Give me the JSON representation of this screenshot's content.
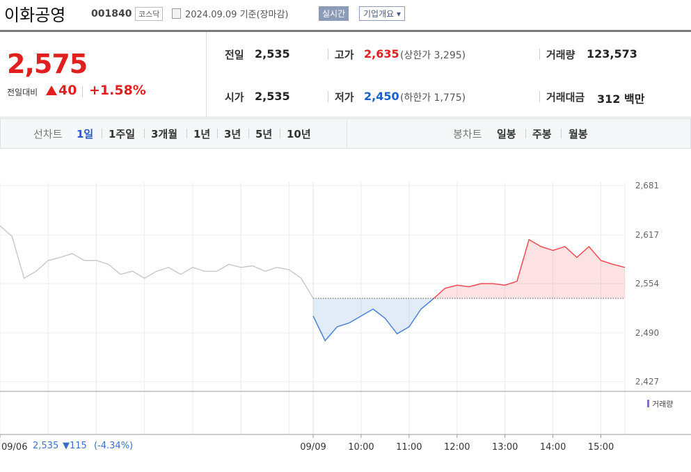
{
  "header": {
    "name": "이화공영",
    "code": "001840",
    "market": "코스닥",
    "date": "2024.09.09 기준(장마감)",
    "realtime": "실시간",
    "company": "기업개요"
  },
  "summary": {
    "price": "2,575",
    "change_label": "전일대비",
    "change": "40",
    "rate": "+1.58%",
    "stats": [
      {
        "label": "전일",
        "value": "2,535"
      },
      {
        "label": "고가",
        "value": "2,635",
        "limit": "(상한가 3,295)"
      },
      {
        "label": "거래량",
        "value": "123,573"
      },
      {
        "label": "시가",
        "value": "2,535"
      },
      {
        "label": "저가",
        "value": "2,450",
        "limit": "(하한가 1,775)"
      },
      {
        "label": "거래대금",
        "value": "312 백만"
      }
    ]
  },
  "tabs": {
    "line_label": "선차트",
    "line": [
      "1일",
      "1주일",
      "3개월",
      "1년",
      "3년",
      "5년",
      "10년"
    ],
    "candle_label": "봉차트",
    "candle": [
      "일봉",
      "주봉",
      "월봉"
    ]
  },
  "prev_day": {
    "close": "2,535",
    "change": "115",
    "rate": "(-4.34%)"
  },
  "chart_data": {
    "type": "line",
    "categories": [
      "09/06",
      null,
      null,
      null,
      null,
      null,
      null,
      null,
      null,
      null,
      null,
      null,
      null,
      null,
      null,
      null,
      null,
      null,
      null,
      null,
      null,
      null,
      null,
      null,
      null,
      null,
      null,
      "09/09",
      null,
      null,
      null,
      "10:00",
      null,
      null,
      null,
      "11:00",
      null,
      null,
      null,
      "12:00",
      null,
      null,
      null,
      "13:00",
      null,
      null,
      null,
      "14:00",
      null,
      null,
      null,
      "15:00",
      null,
      null
    ],
    "series": [
      {
        "color": "#c4c4c4",
        "values": [
          2629,
          2615,
          2561,
          2570,
          2584,
          2588,
          2593,
          2584,
          2584,
          2579,
          2566,
          2570,
          2561,
          2570,
          2575,
          2566,
          2575,
          2570,
          2570,
          2579,
          2575,
          2577,
          2570,
          2575,
          2572,
          2561,
          2535,
          null,
          null,
          null,
          null,
          null,
          null,
          null,
          null,
          null,
          null,
          null,
          null,
          null,
          null,
          null,
          null,
          null,
          null,
          null,
          null,
          null,
          null,
          null,
          null,
          null,
          null,
          null
        ]
      },
      {
        "color": "#4a80d4",
        "up_color": "#f04a52",
        "values": [
          null,
          null,
          null,
          null,
          null,
          null,
          null,
          null,
          null,
          null,
          null,
          null,
          null,
          null,
          null,
          null,
          null,
          null,
          null,
          null,
          null,
          null,
          null,
          null,
          null,
          null,
          null,
          2512,
          2480,
          2498,
          2503,
          2512,
          2521,
          2509,
          2489,
          2498,
          2521,
          2534,
          2548,
          2552,
          2550,
          2554,
          2554,
          2552,
          2557,
          2611,
          2602,
          2597,
          2602,
          2588,
          2602,
          2584,
          2579,
          2575
        ]
      }
    ],
    "baseline": 2535,
    "ylim": [
      2427,
      2681
    ],
    "yticks": [
      {
        "value": 2427,
        "label": "2,427"
      },
      {
        "value": 2490,
        "label": "2,490"
      },
      {
        "value": 2554,
        "label": "2,554"
      },
      {
        "value": 2617,
        "label": "2,617"
      },
      {
        "value": 2681,
        "label": "2,681"
      }
    ],
    "grid": true,
    "volume_legend": "거래량"
  }
}
